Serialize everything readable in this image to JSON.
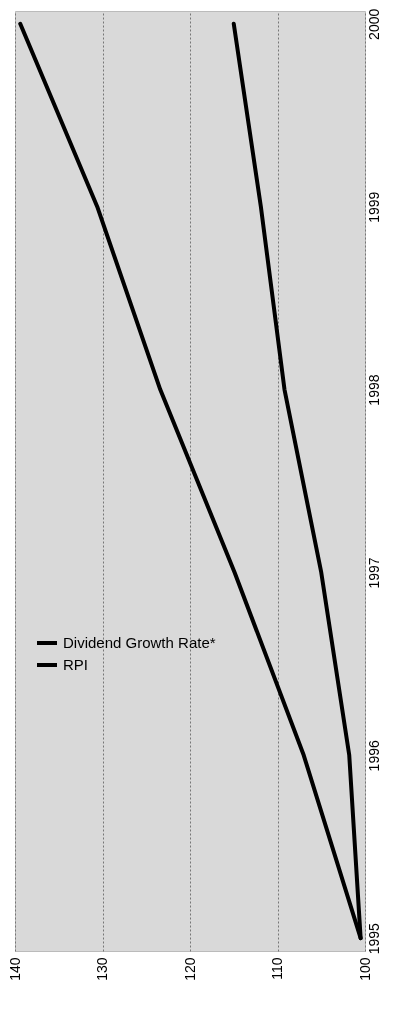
{
  "chart_data": {
    "type": "line",
    "orientation": "horizontal",
    "categories": [
      "2000",
      "1999",
      "1998",
      "1997",
      "1996",
      "1995"
    ],
    "series": [
      {
        "name": "Dividend Growth Rate*",
        "color": "#000000",
        "values": [
          139.4,
          130.6,
          123.4,
          114.9,
          107,
          100.5
        ]
      },
      {
        "name": "RPI",
        "color": "#000000",
        "values": [
          115,
          111.9,
          109.2,
          105,
          101.8,
          100.5
        ]
      }
    ],
    "xlim": [
      140,
      100
    ],
    "xticks": [
      140,
      130,
      120,
      110,
      100
    ],
    "grid": "x",
    "legend": "bottom left",
    "line_style": "solid",
    "marker": "none"
  }
}
